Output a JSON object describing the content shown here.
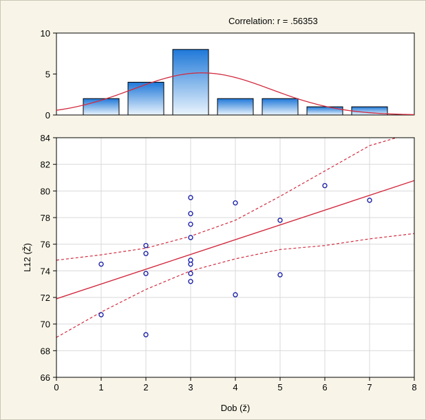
{
  "correlation_label": "Correlation: r = .56353",
  "colors": {
    "background": "#f8f5e8",
    "plot_background": "#ffffff",
    "fit_line": "#d22b3f",
    "point_stroke": "#1f24a8",
    "bar_top": "#1f78d8",
    "bar_bottom": "#eaf4fd",
    "bar_stroke": "#000000",
    "grid": "#d9d9d9"
  },
  "chart_data": [
    {
      "type": "bar",
      "title": "",
      "xlabel": "",
      "ylabel": "",
      "x": [
        1,
        2,
        3,
        4,
        5,
        6,
        7
      ],
      "values": [
        2,
        4,
        8,
        2,
        2,
        1,
        1
      ],
      "xlim": [
        0,
        8
      ],
      "ylim": [
        0,
        10
      ],
      "yticks": [
        0,
        5,
        10
      ],
      "normal_curve": true,
      "grid": false
    },
    {
      "type": "scatter",
      "title": "",
      "xlabel": "Dob (ž)",
      "ylabel": "L12 (Ž)",
      "xlim": [
        0,
        8
      ],
      "ylim": [
        66,
        84
      ],
      "xticks": [
        0,
        1,
        2,
        3,
        4,
        5,
        6,
        7,
        8
      ],
      "yticks": [
        66,
        68,
        70,
        72,
        74,
        76,
        78,
        80,
        82,
        84
      ],
      "grid": true,
      "points": [
        {
          "x": 1,
          "y": 74.5
        },
        {
          "x": 1,
          "y": 70.7
        },
        {
          "x": 2,
          "y": 75.9
        },
        {
          "x": 2,
          "y": 75.3
        },
        {
          "x": 2,
          "y": 73.8
        },
        {
          "x": 2,
          "y": 69.2
        },
        {
          "x": 3,
          "y": 79.5
        },
        {
          "x": 3,
          "y": 78.3
        },
        {
          "x": 3,
          "y": 77.5
        },
        {
          "x": 3,
          "y": 76.5
        },
        {
          "x": 3,
          "y": 74.8
        },
        {
          "x": 3,
          "y": 74.5
        },
        {
          "x": 3,
          "y": 73.8
        },
        {
          "x": 3,
          "y": 73.2
        },
        {
          "x": 4,
          "y": 79.1
        },
        {
          "x": 4,
          "y": 72.2
        },
        {
          "x": 5,
          "y": 77.8
        },
        {
          "x": 5,
          "y": 73.7
        },
        {
          "x": 6,
          "y": 80.4
        },
        {
          "x": 7,
          "y": 79.3
        }
      ],
      "fit_line": {
        "intercept": 71.9,
        "slope": 1.11
      },
      "confidence_band": {
        "upper": [
          [
            0,
            74.8
          ],
          [
            1,
            75.2
          ],
          [
            2,
            75.7
          ],
          [
            3,
            76.6
          ],
          [
            4,
            77.8
          ],
          [
            5,
            79.6
          ],
          [
            6,
            81.5
          ],
          [
            7,
            83.4
          ],
          [
            7.6,
            84.0
          ]
        ],
        "lower": [
          [
            0,
            69.0
          ],
          [
            1,
            70.9
          ],
          [
            2,
            72.6
          ],
          [
            3,
            74.0
          ],
          [
            4,
            74.9
          ],
          [
            5,
            75.6
          ],
          [
            6,
            75.9
          ],
          [
            7,
            76.4
          ],
          [
            8,
            76.8
          ]
        ]
      }
    }
  ]
}
